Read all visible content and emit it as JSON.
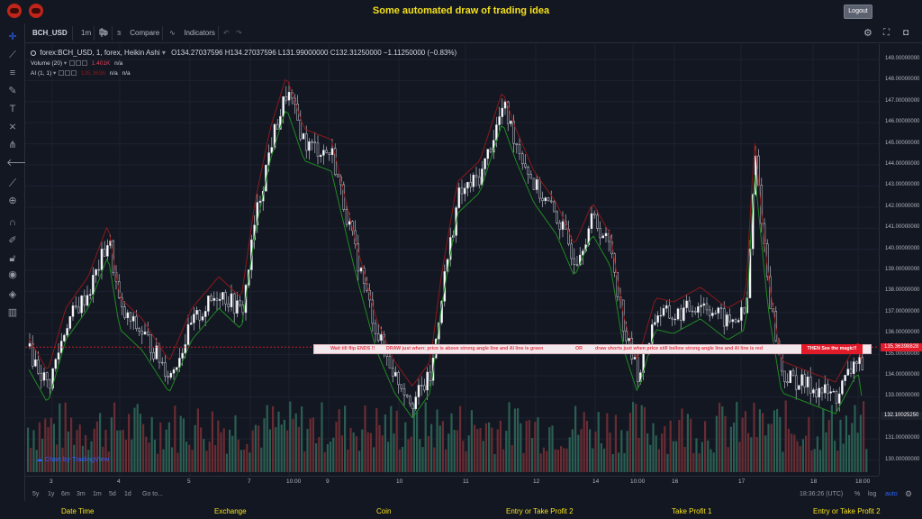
{
  "app": {
    "title": "Some automated draw of trading idea",
    "logout_label": "Logout",
    "logos": [
      "tiger-logo-icon",
      "tiger-logo-icon"
    ]
  },
  "toolbar": {
    "symbol": "BCH_USD",
    "interval": "1m",
    "compare_label": "Compare",
    "indicators_label": "Indicators"
  },
  "legend": {
    "main": "forex:BCH_USD, 1, forex, Heikin Ashi",
    "ohlc": "O134.27037596  H134.27037596  L131.99000000  C132.31250000  −1.11250000 (−0.83%)",
    "volume_label": "Volume (20)",
    "volume_value": "1.401K",
    "volume_na": "n/a",
    "ai_label": "AI (1, 1)",
    "ai_value": "135.3636",
    "ai_na1": "n/a",
    "ai_na2": "n/a"
  },
  "annotation": {
    "part1": "Wait till flip ENDS  !!",
    "part2": "DRAW just when:  price is above strong angle line and AI line is green",
    "part3": "OR",
    "part4": "draw shorts just when price still bellow strong angle line and AI line is red",
    "tag": "THEN See the magic!!"
  },
  "price_axis": {
    "labels": [
      "149.00000000",
      "148.00000000",
      "147.00000000",
      "146.00000000",
      "145.00000000",
      "144.00000000",
      "143.00000000",
      "142.00000000",
      "141.00000000",
      "140.00000000",
      "139.00000000",
      "138.00000000",
      "137.00000000",
      "136.00000000",
      "135.00000000",
      "134.00000000",
      "133.00000000",
      "132.00000000",
      "131.00000000",
      "130.00000000"
    ],
    "marker_red": "135.36398828",
    "marker_dark": "132.10025250"
  },
  "time_axis": {
    "labels": [
      "3",
      "4",
      "5",
      "7",
      "10:00",
      "9",
      "10",
      "11",
      "12",
      "14",
      "10:00",
      "16",
      "17",
      "18",
      "18:00"
    ]
  },
  "bottom_bar": {
    "ranges": [
      "5y",
      "1y",
      "6m",
      "3m",
      "1m",
      "5d",
      "1d"
    ],
    "goto": "Go to...",
    "clock": "18:36:26 (UTC)",
    "pct": "%",
    "log": "log",
    "auto": "auto"
  },
  "watermark": "Chart by TradingView",
  "footer": {
    "labels": [
      "Date Time",
      "Exchange",
      "Coin",
      "Entry or Take Profit 2",
      "Take Profit 1",
      "Entry or Take Profit 2"
    ]
  },
  "colors": {
    "background": "#131722",
    "title": "#f5e11a",
    "up_candle": "#ffffff",
    "down_candle": "#131722",
    "ai_green": "#1f8a22",
    "ai_red": "#8b1a1a",
    "volume_up": "#2f6b5a",
    "volume_down": "#7a3036",
    "annotation_text": "#e23a4a"
  }
}
